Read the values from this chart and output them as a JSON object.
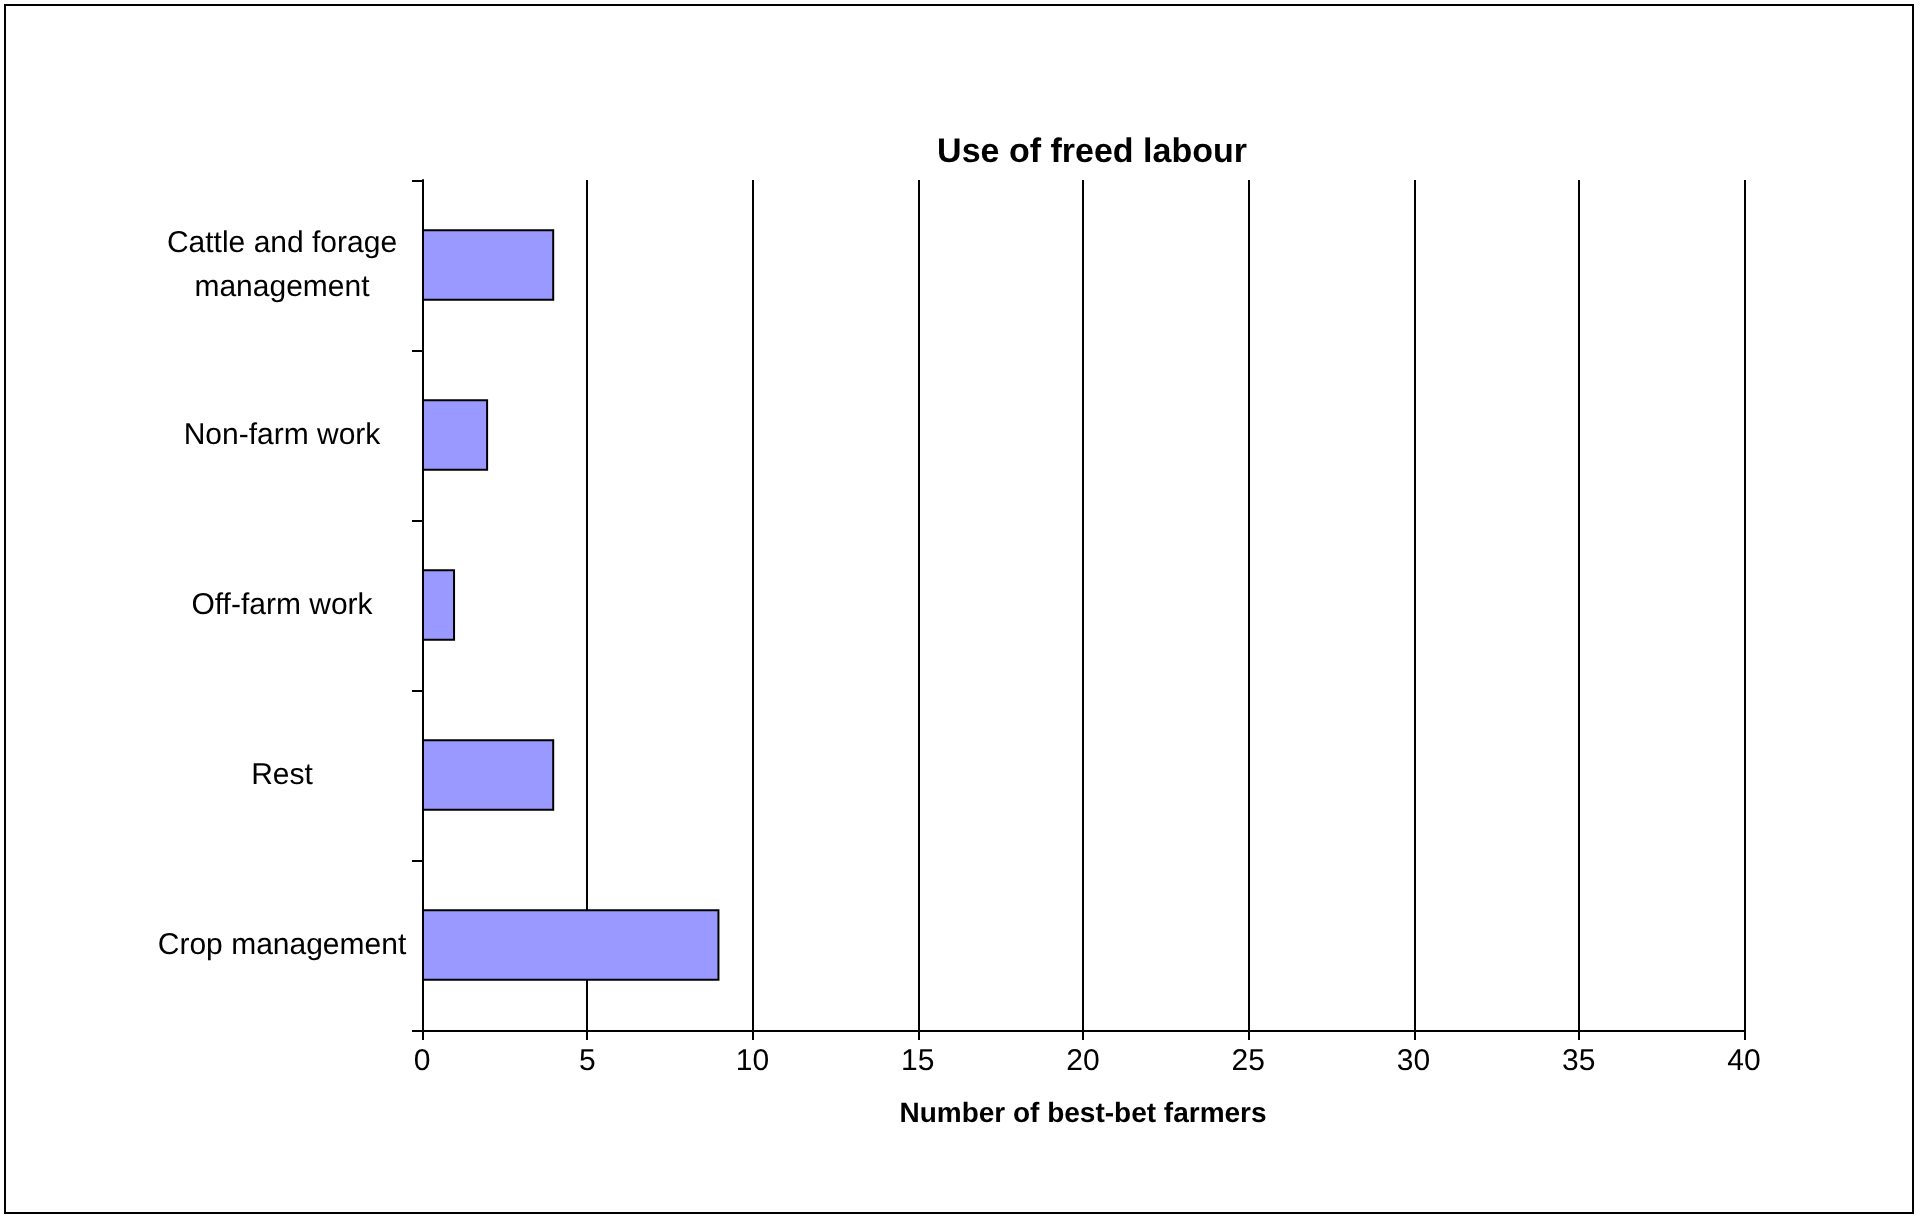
{
  "chart_data": {
    "type": "bar",
    "orientation": "horizontal",
    "title": "Use of freed labour",
    "xlabel": "Number of best-bet farmers",
    "categories": [
      "Cattle and forage\nmanagement",
      "Non-farm work",
      "Off-farm work",
      "Rest",
      "Crop management"
    ],
    "values": [
      4,
      2,
      1,
      4,
      9
    ],
    "color": "#9999ff",
    "xlim": [
      0,
      40
    ],
    "xticks": [
      0,
      5,
      10,
      15,
      20,
      25,
      30,
      35,
      40
    ],
    "grid": "x"
  }
}
